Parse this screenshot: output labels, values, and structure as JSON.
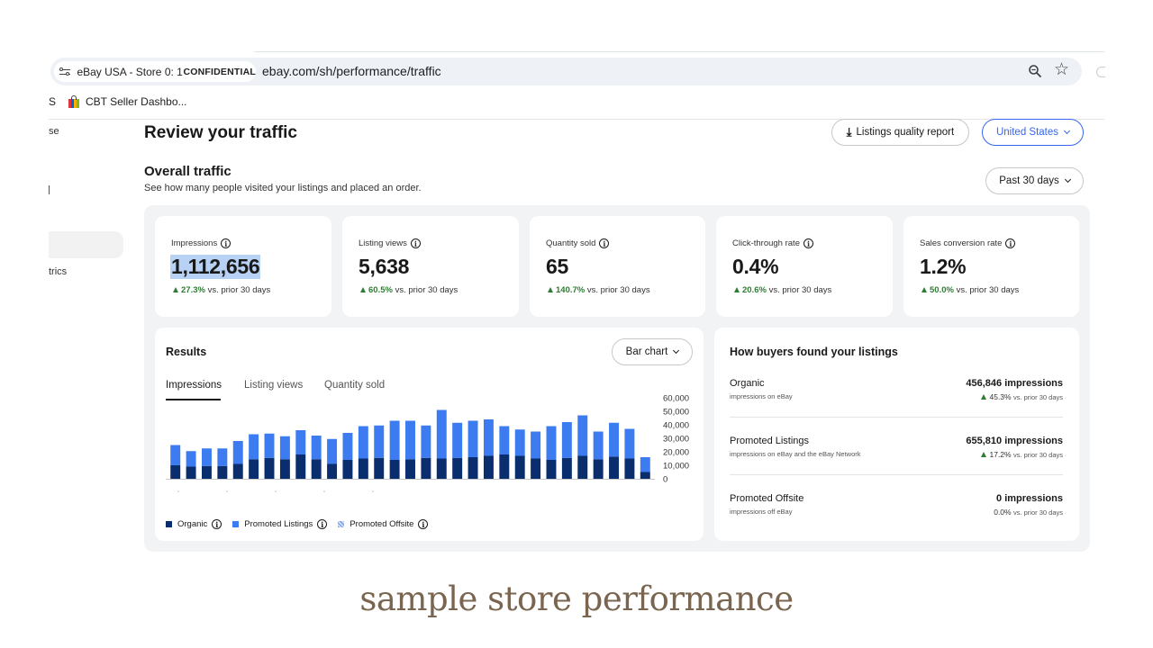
{
  "browser": {
    "tab_title": "eBay USA - Store 0: 1",
    "confidential_label": "CONFIDENTIAL",
    "url": "ebay.com/sh/performance/traffic",
    "bookmark_stub": "S",
    "bookmark_label": "CBT Seller Dashbo..."
  },
  "sidebar": {
    "item_partial_top": "se",
    "item_partial_bottom": "trics"
  },
  "header": {
    "page_title": "Review your traffic",
    "report_button": "Listings quality report",
    "country_button": "United States"
  },
  "overall": {
    "title": "Overall traffic",
    "subtitle": "See how many people visited your listings and placed an order.",
    "period_button": "Past 30 days"
  },
  "metrics": [
    {
      "label": "Impressions",
      "value": "1,112,656",
      "change": "27.3%",
      "suffix": "vs. prior 30 days"
    },
    {
      "label": "Listing views",
      "value": "5,638",
      "change": "60.5%",
      "suffix": "vs. prior 30 days"
    },
    {
      "label": "Quantity sold",
      "value": "65",
      "change": "140.7%",
      "suffix": "vs. prior 30 days"
    },
    {
      "label": "Click-through rate",
      "value": "0.4%",
      "change": "20.6%",
      "suffix": "vs. prior 30 days"
    },
    {
      "label": "Sales conversion rate",
      "value": "1.2%",
      "change": "50.0%",
      "suffix": "vs. prior 30 days"
    }
  ],
  "results": {
    "title": "Results",
    "chart_type_button": "Bar chart",
    "tabs": [
      "Impressions",
      "Listing views",
      "Quantity sold"
    ],
    "legend": [
      "Organic",
      "Promoted Listings",
      "Promoted Offsite"
    ]
  },
  "chart_data": {
    "type": "bar",
    "stacked": true,
    "y_ticks": [
      "60,000",
      "50,000",
      "40,000",
      "30,000",
      "20,000",
      "10,000",
      "0"
    ],
    "ylim": [
      0,
      60000
    ],
    "series": [
      {
        "name": "Organic",
        "color": "#0a2d6e",
        "values": [
          10000,
          9000,
          9500,
          9500,
          11000,
          14500,
          15500,
          14500,
          18000,
          14500,
          11000,
          14000,
          15000,
          15500,
          14000,
          14500,
          15500,
          15000,
          15500,
          16000,
          17000,
          18000,
          17000,
          15000,
          14000,
          15500,
          17000,
          14500,
          16500,
          15000,
          5000
        ]
      },
      {
        "name": "Promoted Listings",
        "color": "#3d7cf0",
        "values": [
          15000,
          11500,
          13000,
          13000,
          17000,
          18500,
          18000,
          17000,
          18000,
          17500,
          18500,
          20000,
          24000,
          24000,
          29000,
          28500,
          24000,
          36000,
          26000,
          27000,
          27000,
          21000,
          19500,
          20000,
          25000,
          26500,
          30000,
          20500,
          25000,
          22000,
          11000
        ]
      },
      {
        "name": "Promoted Offsite",
        "color": "#7ea7ef",
        "values": [
          0,
          0,
          0,
          0,
          0,
          0,
          0,
          0,
          0,
          0,
          0,
          0,
          0,
          0,
          0,
          0,
          0,
          0,
          0,
          0,
          0,
          0,
          0,
          0,
          0,
          0,
          0,
          0,
          0,
          0,
          0
        ]
      }
    ]
  },
  "buyers": {
    "title": "How buyers found your listings",
    "sources": [
      {
        "name": "Organic",
        "desc": "impressions on eBay",
        "value": "456,846 impressions",
        "change": "45.3%",
        "suffix": "vs. prior 30 days",
        "trend": "up"
      },
      {
        "name": "Promoted Listings",
        "desc": "impressions on eBay and the eBay Network",
        "value": "655,810 impressions",
        "change": "17.2%",
        "suffix": "vs. prior 30 days",
        "trend": "up"
      },
      {
        "name": "Promoted Offsite",
        "desc": "impressions off eBay",
        "value": "0 impressions",
        "change": "0.0%",
        "suffix": "vs. prior 30 days",
        "trend": "flat"
      }
    ]
  },
  "caption": "sample store performance",
  "colors": {
    "accent_blue": "#3665f3",
    "positive_green": "#2f7d32",
    "caption_brown": "#7a6650"
  }
}
